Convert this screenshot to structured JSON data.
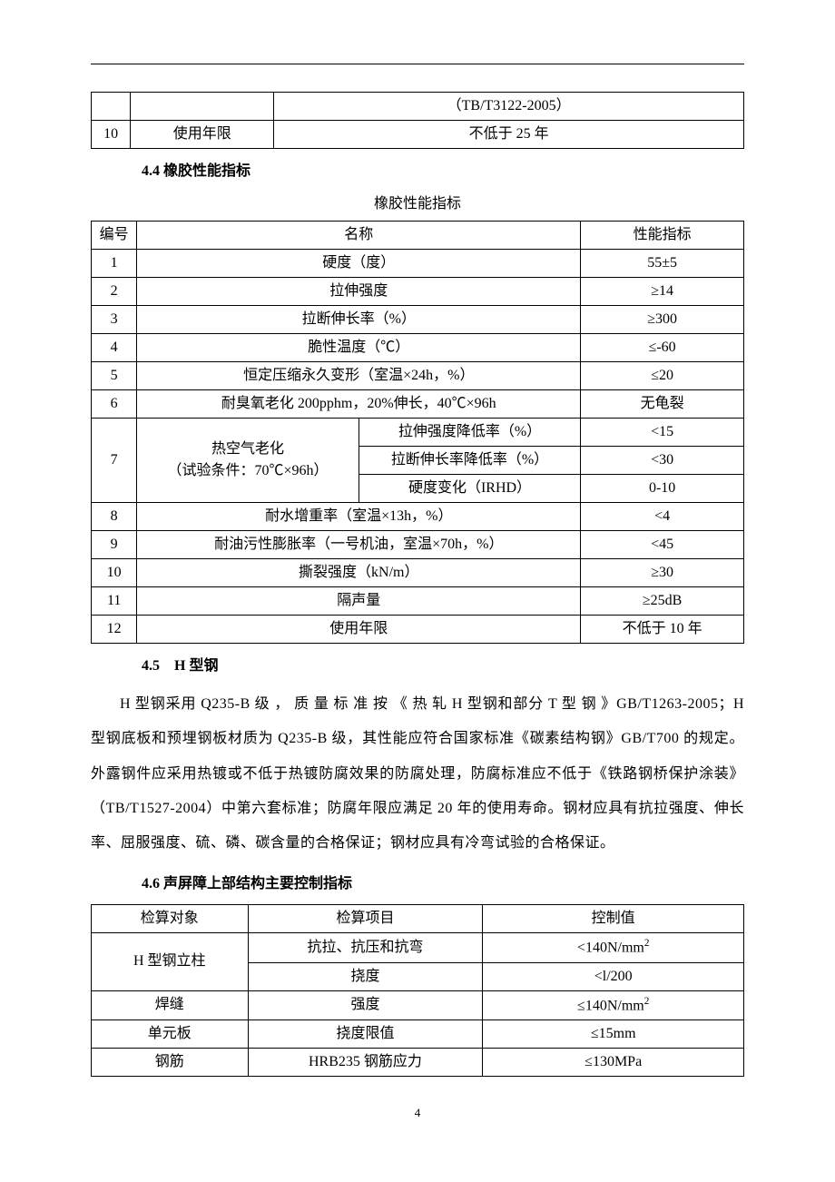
{
  "table1": {
    "rows": [
      {
        "n": "",
        "name": "",
        "val": "（TB/T3122-2005）"
      },
      {
        "n": "10",
        "name": "使用年限",
        "val": "不低于 25 年"
      }
    ]
  },
  "section44": {
    "heading": "4.4 橡胶性能指标",
    "title": "橡胶性能指标"
  },
  "table2": {
    "header": {
      "n": "编号",
      "name": "名称",
      "val": "性能指标"
    },
    "rows": [
      {
        "n": "1",
        "name": "硬度（度）",
        "val": "55±5"
      },
      {
        "n": "2",
        "name": "拉伸强度",
        "val": "≥14"
      },
      {
        "n": "3",
        "name": "拉断伸长率（%）",
        "val": "≥300"
      },
      {
        "n": "4",
        "name": "脆性温度（℃）",
        "val": "≤-60"
      },
      {
        "n": "5",
        "name": "恒定压缩永久变形（室温×24h，%）",
        "val": "≤20"
      },
      {
        "n": "6",
        "name": "耐臭氧老化 200pphm，20%伸长，40℃×96h",
        "val": "无龟裂"
      }
    ],
    "row7": {
      "n": "7",
      "name_a": "热空气老化",
      "name_b": "（试验条件：70℃×96h）",
      "sub": [
        {
          "name": "拉伸强度降低率（%）",
          "val": "<15"
        },
        {
          "name": "拉断伸长率降低率（%）",
          "val": "<30"
        },
        {
          "name": "硬度变化（IRHD）",
          "val": "0-10"
        }
      ]
    },
    "tail": [
      {
        "n": "8",
        "name": "耐水增重率（室温×13h，%）",
        "val": "<4"
      },
      {
        "n": "9",
        "name": "耐油污性膨胀率（一号机油，室温×70h，%）",
        "val": "<45"
      },
      {
        "n": "10",
        "name": "撕裂强度（kN/m）",
        "val": "≥30"
      },
      {
        "n": "11",
        "name": "隔声量",
        "val": "≥25dB"
      },
      {
        "n": "12",
        "name": "使用年限",
        "val": "不低于 10 年"
      }
    ]
  },
  "section45": {
    "heading": "4.5　H 型钢",
    "paragraph": "H 型钢采用 Q235-B 级 ， 质 量 标 准 按 《 热 轧 H 型钢和部分 T 型 钢 》GB/T1263-2005；H 型钢底板和预埋钢板材质为 Q235-B 级，其性能应符合国家标准《碳素结构钢》GB/T700 的规定。外露钢件应采用热镀或不低于热镀防腐效果的防腐处理，防腐标准应不低于《铁路钢桥保护涂装》（TB/T1527-2004）中第六套标准；防腐年限应满足 20 年的使用寿命。钢材应具有抗拉强度、伸长率、屈服强度、硫、磷、碳含量的合格保证；钢材应具有冷弯试验的合格保证。"
  },
  "section46": {
    "heading": "4.6 声屏障上部结构主要控制指标"
  },
  "table3": {
    "header": {
      "c1": "检算对象",
      "c2": "检算项目",
      "c3": "控制值"
    },
    "rows": [
      {
        "c1": "H 型钢立柱",
        "c1_rowspan": 2,
        "c2": "抗拉、抗压和抗弯",
        "c3": "<140N/mm",
        "sup": "2"
      },
      {
        "c2": "挠度",
        "c3": "<l/200"
      },
      {
        "c1": "焊缝",
        "c2": "强度",
        "c3": "≤140N/mm",
        "sup": "2"
      },
      {
        "c1": "单元板",
        "c2": "挠度限值",
        "c3": "≤15mm"
      },
      {
        "c1": "钢筋",
        "c2": "HRB235 钢筋应力",
        "c3": "≤130MPa"
      }
    ]
  },
  "page_number": "4"
}
